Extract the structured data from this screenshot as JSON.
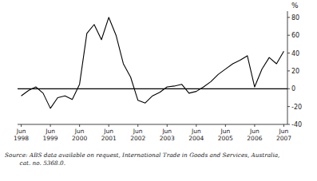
{
  "chart_data": {
    "type": "line",
    "ylabel": "%",
    "source": "Source: ABS data available on request, International Trade in Goods and Services, Australia,\n        cat. no. 5368.0.",
    "categories": [
      "Jun\n1998",
      null,
      null,
      null,
      "Jun\n1999",
      null,
      null,
      null,
      "Jun\n2000",
      null,
      null,
      null,
      "Jun\n2001",
      null,
      null,
      null,
      "Jun\n2002",
      null,
      null,
      null,
      "Jun\n2003",
      null,
      null,
      null,
      "Jun\n2004",
      null,
      null,
      null,
      "Jun\n2005",
      null,
      null,
      null,
      "Jun\n2006",
      null,
      null,
      null,
      "Jun\n2007"
    ],
    "values": [
      -8,
      -2,
      2,
      -5,
      -22,
      -10,
      -8,
      -12,
      5,
      62,
      72,
      55,
      80,
      60,
      28,
      13,
      -13,
      -16,
      -8,
      -4,
      2,
      3,
      5,
      -5,
      -3,
      2,
      8,
      16,
      22,
      28,
      32,
      37,
      2,
      22,
      35,
      28,
      42
    ],
    "color": "#000000",
    "ylim": [
      -40,
      87
    ],
    "yticks": [
      -40,
      -20,
      0,
      20,
      40,
      60,
      80
    ],
    "grid": false
  }
}
